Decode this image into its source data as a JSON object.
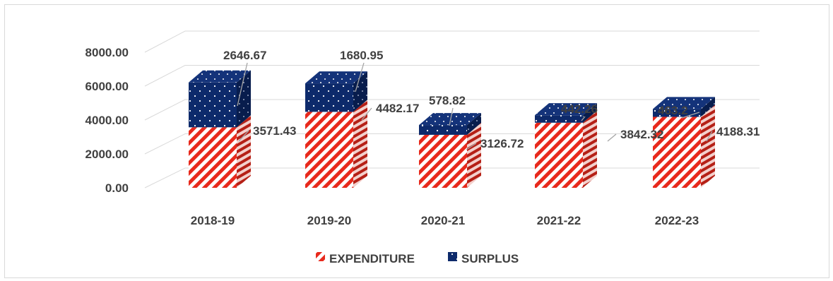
{
  "chart_data": {
    "type": "bar",
    "stacked": true,
    "style": "3d-column",
    "categories": [
      "2018-19",
      "2019-20",
      "2020-21",
      "2021-22",
      "2022-23"
    ],
    "series": [
      {
        "name": "EXPENDITURE",
        "values": [
          3571.43,
          4482.17,
          3126.72,
          3842.32,
          4188.31
        ],
        "color": "#e8291c",
        "pattern": "diagonal-stripes-red-white"
      },
      {
        "name": "SURPLUS",
        "values": [
          2646.67,
          1680.95,
          578.82,
          442.26,
          463.2
        ],
        "color": "#0d2a6b",
        "pattern": "white-dots-navy"
      }
    ],
    "value_labels": {
      "EXPENDITURE": [
        "3571.43",
        "4482.17",
        "3126.72",
        "3842.32",
        "4188.31"
      ],
      "SURPLUS": [
        "2646.67",
        "1680.95",
        "578.82",
        "442.26",
        "463.2"
      ]
    },
    "y_ticks": [
      "0.00",
      "2000.00",
      "4000.00",
      "6000.00",
      "8000.00"
    ],
    "ylim": [
      0,
      8000
    ],
    "grid": true,
    "legend_position": "bottom",
    "title": "",
    "xlabel": "",
    "ylabel": ""
  }
}
